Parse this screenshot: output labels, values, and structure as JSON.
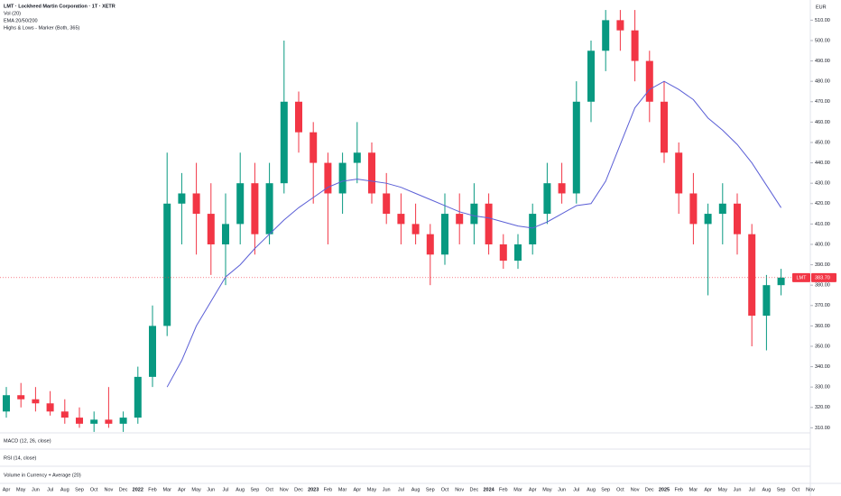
{
  "chart_data": {
    "type": "candlestick",
    "title": "LMT · Lockheed Martin Corporation · 1T · XETR",
    "indicators": [
      "Vol (20)",
      "EMA 20/50/200",
      "Highs & Lows - Marker (Both, 365)"
    ],
    "panes": [
      "MACD (12, 26, close)",
      "RSI (14, close)",
      "Volume in Currency + Average (20)"
    ],
    "currency": "EUR",
    "categories": [
      "Apr",
      "May",
      "Jun",
      "Jul",
      "Aug",
      "Sep",
      "Oct",
      "Nov",
      "Dec",
      "2022",
      "Feb",
      "Mar",
      "Apr",
      "May",
      "Jun",
      "Jul",
      "Aug",
      "Sep",
      "Oct",
      "Nov",
      "Dec",
      "2023",
      "Feb",
      "Mar",
      "Apr",
      "May",
      "Jun",
      "Jul",
      "Aug",
      "Sep",
      "Oct",
      "Nov",
      "Dec",
      "2024",
      "Feb",
      "Mar",
      "Apr",
      "May",
      "Jun",
      "Jul",
      "Aug",
      "Sep",
      "Oct",
      "Nov",
      "Dec",
      "2025",
      "Feb",
      "Mar",
      "Apr",
      "May",
      "Jun",
      "Jul",
      "Aug",
      "Sep",
      "Oct",
      "Nov"
    ],
    "open": [
      318,
      326,
      324,
      322,
      318,
      315,
      312,
      314,
      312,
      315,
      335,
      360,
      420,
      425,
      415,
      400,
      410,
      430,
      405,
      430,
      470,
      455,
      440,
      425,
      440,
      445,
      425,
      415,
      410,
      405,
      395,
      415,
      410,
      420,
      400,
      392,
      400,
      415,
      430,
      425,
      470,
      495,
      510,
      505,
      490,
      470,
      445,
      425,
      410,
      415,
      420,
      405,
      365,
      380,
      null,
      null
    ],
    "high": [
      330,
      332,
      330,
      328,
      324,
      320,
      318,
      330,
      318,
      340,
      370,
      445,
      435,
      440,
      430,
      425,
      445,
      440,
      440,
      500,
      475,
      460,
      445,
      445,
      460,
      450,
      435,
      425,
      420,
      410,
      425,
      425,
      430,
      425,
      405,
      405,
      420,
      440,
      440,
      480,
      500,
      515,
      515,
      515,
      495,
      480,
      450,
      435,
      420,
      430,
      425,
      410,
      385,
      388,
      null,
      null
    ],
    "low": [
      315,
      320,
      318,
      316,
      312,
      310,
      308,
      310,
      308,
      312,
      330,
      355,
      400,
      395,
      385,
      380,
      400,
      395,
      400,
      425,
      445,
      420,
      400,
      415,
      430,
      420,
      410,
      400,
      400,
      380,
      390,
      400,
      400,
      395,
      388,
      388,
      395,
      410,
      420,
      420,
      460,
      485,
      495,
      480,
      460,
      440,
      415,
      400,
      375,
      400,
      395,
      350,
      348,
      375,
      null,
      null
    ],
    "close": [
      326,
      324,
      322,
      318,
      315,
      312,
      314,
      312,
      315,
      335,
      360,
      420,
      425,
      415,
      400,
      410,
      430,
      405,
      430,
      470,
      455,
      440,
      425,
      440,
      445,
      425,
      415,
      410,
      405,
      395,
      415,
      410,
      420,
      400,
      392,
      400,
      415,
      430,
      425,
      470,
      495,
      510,
      505,
      490,
      470,
      445,
      425,
      410,
      415,
      420,
      405,
      365,
      380,
      383.7,
      null,
      null
    ],
    "up_color": "#089981",
    "down_color": "#f23645",
    "overlay": {
      "color": "#5b5fd6",
      "values": [
        null,
        null,
        null,
        null,
        null,
        null,
        null,
        null,
        null,
        null,
        null,
        330,
        343,
        360,
        372,
        384,
        390,
        398,
        405,
        412,
        418,
        423,
        428,
        431,
        432,
        431,
        430,
        428,
        425,
        422,
        419,
        416,
        414,
        413,
        411,
        409,
        408,
        411,
        415,
        419,
        420,
        431,
        449,
        467,
        476,
        480,
        476,
        471,
        462,
        456,
        449,
        440,
        429,
        418,
        null,
        null
      ]
    },
    "last_price": {
      "symbol": "LMT",
      "value": 383.7,
      "value_label": "383.70",
      "color": "#f23645"
    },
    "ylim": [
      308.4,
      519.9
    ],
    "yticks": [
      {
        "value": 310,
        "label": "310.00"
      },
      {
        "value": 320,
        "label": "320.00"
      },
      {
        "value": 330,
        "label": "330.00"
      },
      {
        "value": 340,
        "label": "340.00"
      },
      {
        "value": 350,
        "label": "350.00"
      },
      {
        "value": 360,
        "label": "360.00"
      },
      {
        "value": 370,
        "label": "370.00"
      },
      {
        "value": 380,
        "label": "380.00"
      },
      {
        "value": 390,
        "label": "390.00"
      },
      {
        "value": 400,
        "label": "400.00"
      },
      {
        "value": 410,
        "label": "410.00"
      },
      {
        "value": 420,
        "label": "420.00"
      },
      {
        "value": 430,
        "label": "430.00"
      },
      {
        "value": 440,
        "label": "440.00"
      },
      {
        "value": 450,
        "label": "450.00"
      },
      {
        "value": 460,
        "label": "460.00"
      },
      {
        "value": 470,
        "label": "470.00"
      },
      {
        "value": 480,
        "label": "480.00"
      },
      {
        "value": 490,
        "label": "490.00"
      },
      {
        "value": 500,
        "label": "500.00"
      },
      {
        "value": 510,
        "label": "510.00"
      }
    ]
  }
}
